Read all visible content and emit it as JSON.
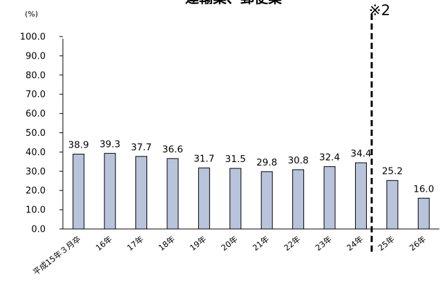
{
  "chart_data": {
    "type": "bar",
    "title": "運輸業、郵便業",
    "ylabel": "(%)",
    "ylim": [
      0,
      100
    ],
    "yticks": [
      "0.0",
      "10.0",
      "20.0",
      "30.0",
      "40.0",
      "50.0",
      "60.0",
      "70.0",
      "80.0",
      "90.0",
      "100.0"
    ],
    "categories": [
      "平成15年３月卒",
      "16年",
      "17年",
      "18年",
      "19年",
      "20年",
      "21年",
      "22年",
      "23年",
      "24年",
      "25年",
      "26年"
    ],
    "values": [
      38.9,
      39.3,
      37.7,
      36.6,
      31.7,
      31.5,
      29.8,
      30.8,
      32.4,
      34.4,
      25.2,
      16.0
    ],
    "value_labels": [
      "38.9",
      "39.3",
      "37.7",
      "36.6",
      "31.7",
      "31.5",
      "29.8",
      "30.8",
      "32.4",
      "34.4",
      "25.2",
      "16.0"
    ],
    "annotation": "※2",
    "bar_color": "#b8c4dc",
    "bar_stroke": "#000000",
    "grid": false,
    "legend": "none"
  }
}
